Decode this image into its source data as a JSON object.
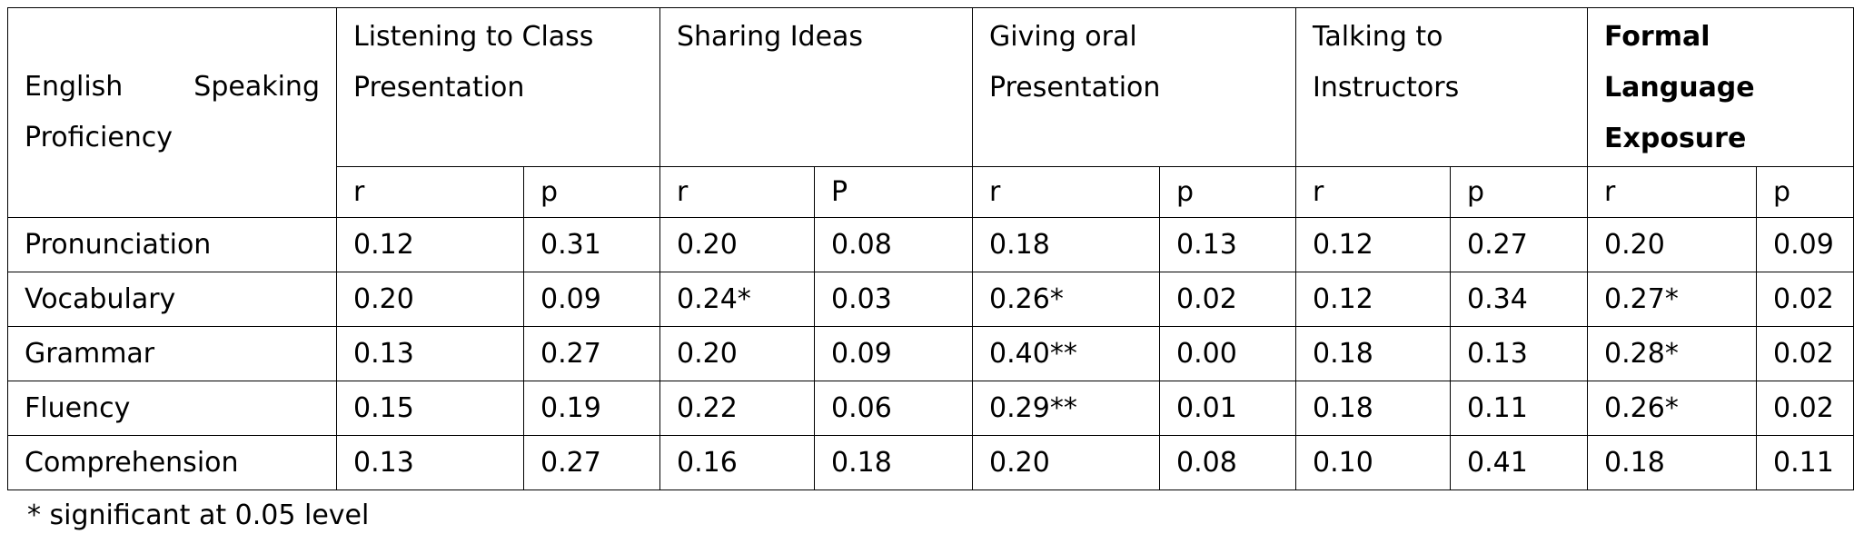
{
  "table": {
    "corner_label": "English Speaking Proficiency",
    "groups": [
      {
        "label": "Listening to Class Presentation",
        "bold": false
      },
      {
        "label": "Sharing Ideas",
        "bold": false
      },
      {
        "label": "Giving oral Presentation",
        "bold": false
      },
      {
        "label": "Talking to Instructors",
        "bold": false
      },
      {
        "label": "Formal Language Exposure",
        "bold": true
      }
    ],
    "subheaders": [
      "r",
      "p",
      "r",
      "P",
      "r",
      "p",
      "r",
      "p",
      "r",
      "p"
    ],
    "rows": [
      {
        "label": "Pronunciation",
        "cells": [
          "0.12",
          "0.31",
          "0.20",
          "0.08",
          "0.18",
          "0.13",
          "0.12",
          "0.27",
          "0.20",
          "0.09"
        ]
      },
      {
        "label": "Vocabulary",
        "cells": [
          "0.20",
          "0.09",
          "0.24*",
          "0.03",
          "0.26*",
          "0.02",
          "0.12",
          "0.34",
          "0.27*",
          "0.02"
        ]
      },
      {
        "label": "Grammar",
        "cells": [
          "0.13",
          "0.27",
          "0.20",
          "0.09",
          "0.40**",
          "0.00",
          "0.18",
          "0.13",
          "0.28*",
          "0.02"
        ]
      },
      {
        "label": "Fluency",
        "cells": [
          "0.15",
          "0.19",
          "0.22",
          "0.06",
          "0.29**",
          "0.01",
          "0.18",
          "0.11",
          "0.26*",
          "0.02"
        ]
      },
      {
        "label": "Comprehension",
        "cells": [
          "0.13",
          "0.27",
          "0.16",
          "0.18",
          "0.20",
          "0.08",
          "0.10",
          "0.41",
          "0.18",
          "0.11"
        ]
      }
    ]
  },
  "footnote": "* significant at 0.05 level"
}
